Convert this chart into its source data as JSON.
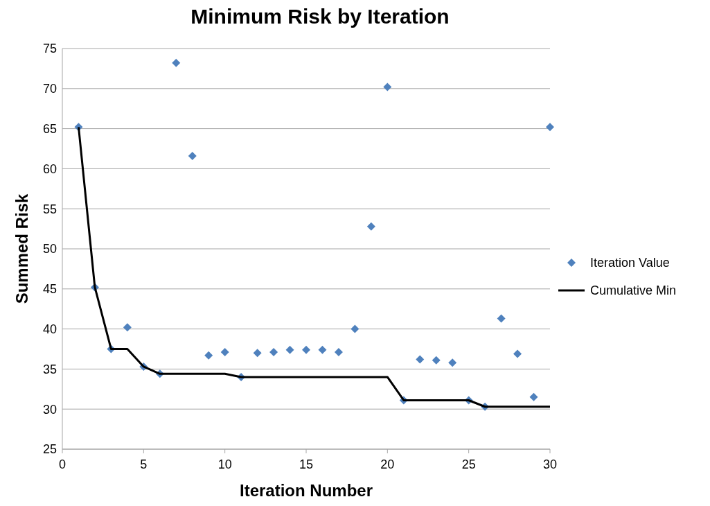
{
  "chart_data": {
    "type": "scatter",
    "title": "Minimum Risk by Iteration",
    "xlabel": "Iteration Number",
    "ylabel": "Summed Risk",
    "xlim": [
      0,
      30
    ],
    "xticks": [
      0,
      5,
      10,
      15,
      20,
      25,
      30
    ],
    "ylim": [
      25,
      75
    ],
    "yticks": [
      25,
      30,
      35,
      40,
      45,
      50,
      55,
      60,
      65,
      70,
      75
    ],
    "grid": "y",
    "legend": "right",
    "series": [
      {
        "name": "Iteration Value",
        "marker": "diamond",
        "color": "#4f81bd",
        "x": [
          1,
          2,
          3,
          4,
          5,
          6,
          7,
          8,
          9,
          10,
          11,
          12,
          13,
          14,
          15,
          16,
          17,
          18,
          19,
          20,
          21,
          22,
          23,
          24,
          25,
          26,
          27,
          28,
          29,
          30
        ],
        "values": [
          65.2,
          45.2,
          37.5,
          40.2,
          35.3,
          34.4,
          73.2,
          61.6,
          36.7,
          37.1,
          34.0,
          37.0,
          37.1,
          37.4,
          37.4,
          37.4,
          37.1,
          40.0,
          52.8,
          70.2,
          31.1,
          36.2,
          36.1,
          35.8,
          31.1,
          30.3,
          41.3,
          36.9,
          31.5,
          65.2
        ]
      },
      {
        "name": "Cumulative Min",
        "type": "line",
        "marker": "none",
        "line_style": "solid",
        "color": "#000000",
        "x": [
          1,
          2,
          3,
          4,
          5,
          6,
          7,
          8,
          9,
          10,
          11,
          12,
          13,
          14,
          15,
          16,
          17,
          18,
          19,
          20,
          21,
          22,
          23,
          24,
          25,
          26,
          27,
          28,
          29,
          30
        ],
        "values": [
          65.2,
          45.2,
          37.5,
          37.5,
          35.3,
          34.4,
          34.4,
          34.4,
          34.4,
          34.4,
          34.0,
          34.0,
          34.0,
          34.0,
          34.0,
          34.0,
          34.0,
          34.0,
          34.0,
          34.0,
          31.1,
          31.1,
          31.1,
          31.1,
          31.1,
          30.3,
          30.3,
          30.3,
          30.3,
          30.3
        ]
      }
    ]
  }
}
